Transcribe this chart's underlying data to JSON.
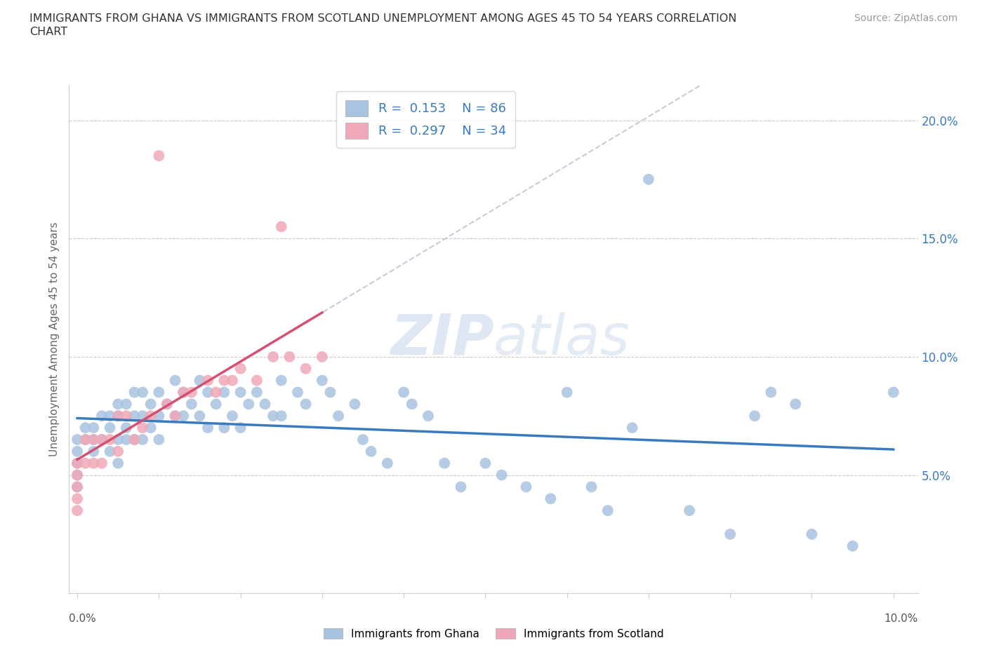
{
  "title": "IMMIGRANTS FROM GHANA VS IMMIGRANTS FROM SCOTLAND UNEMPLOYMENT AMONG AGES 45 TO 54 YEARS CORRELATION\nCHART",
  "source": "Source: ZipAtlas.com",
  "ylabel": "Unemployment Among Ages 45 to 54 years",
  "ghana_R": 0.153,
  "ghana_N": 86,
  "scotland_R": 0.297,
  "scotland_N": 34,
  "ghana_color": "#a8c4e0",
  "scotland_color": "#f0a8b8",
  "ghana_line_color": "#3a7abf",
  "scotland_line_color": "#d45070",
  "dashed_line_color": "#c8b8d0",
  "background_color": "#ffffff",
  "watermark_color": "#c8d8ec",
  "xlim": [
    0.0,
    0.1
  ],
  "ylim": [
    0.0,
    0.215
  ],
  "yticks": [
    0.05,
    0.1,
    0.15,
    0.2
  ],
  "ytick_labels": [
    "5.0%",
    "10.0%",
    "15.0%",
    "20.0%"
  ],
  "ghana_x": [
    0.0,
    0.0,
    0.0,
    0.0,
    0.0,
    0.001,
    0.001,
    0.002,
    0.002,
    0.002,
    0.003,
    0.003,
    0.004,
    0.004,
    0.004,
    0.005,
    0.005,
    0.005,
    0.005,
    0.006,
    0.006,
    0.006,
    0.007,
    0.007,
    0.007,
    0.008,
    0.008,
    0.008,
    0.009,
    0.009,
    0.01,
    0.01,
    0.01,
    0.011,
    0.012,
    0.012,
    0.013,
    0.013,
    0.014,
    0.015,
    0.015,
    0.016,
    0.016,
    0.017,
    0.018,
    0.018,
    0.019,
    0.02,
    0.02,
    0.021,
    0.022,
    0.023,
    0.024,
    0.025,
    0.025,
    0.027,
    0.028,
    0.03,
    0.031,
    0.032,
    0.034,
    0.035,
    0.036,
    0.038,
    0.04,
    0.041,
    0.043,
    0.045,
    0.047,
    0.05,
    0.052,
    0.055,
    0.058,
    0.06,
    0.063,
    0.065,
    0.068,
    0.07,
    0.075,
    0.08,
    0.083,
    0.085,
    0.088,
    0.09,
    0.095,
    0.1
  ],
  "ghana_y": [
    0.065,
    0.06,
    0.055,
    0.05,
    0.045,
    0.07,
    0.065,
    0.07,
    0.065,
    0.06,
    0.075,
    0.065,
    0.075,
    0.07,
    0.06,
    0.08,
    0.075,
    0.065,
    0.055,
    0.08,
    0.07,
    0.065,
    0.085,
    0.075,
    0.065,
    0.085,
    0.075,
    0.065,
    0.08,
    0.07,
    0.085,
    0.075,
    0.065,
    0.08,
    0.09,
    0.075,
    0.085,
    0.075,
    0.08,
    0.09,
    0.075,
    0.085,
    0.07,
    0.08,
    0.085,
    0.07,
    0.075,
    0.085,
    0.07,
    0.08,
    0.085,
    0.08,
    0.075,
    0.09,
    0.075,
    0.085,
    0.08,
    0.09,
    0.085,
    0.075,
    0.08,
    0.065,
    0.06,
    0.055,
    0.085,
    0.08,
    0.075,
    0.055,
    0.045,
    0.055,
    0.05,
    0.045,
    0.04,
    0.085,
    0.045,
    0.035,
    0.07,
    0.175,
    0.035,
    0.025,
    0.075,
    0.085,
    0.08,
    0.025,
    0.02,
    0.085
  ],
  "scotland_x": [
    0.0,
    0.0,
    0.0,
    0.0,
    0.0,
    0.001,
    0.001,
    0.002,
    0.002,
    0.003,
    0.003,
    0.004,
    0.005,
    0.005,
    0.006,
    0.007,
    0.008,
    0.009,
    0.01,
    0.011,
    0.012,
    0.013,
    0.014,
    0.015,
    0.016,
    0.017,
    0.018,
    0.019,
    0.02,
    0.022,
    0.024,
    0.026,
    0.028,
    0.03
  ],
  "scotland_y": [
    0.055,
    0.05,
    0.045,
    0.04,
    0.035,
    0.065,
    0.055,
    0.065,
    0.055,
    0.065,
    0.055,
    0.065,
    0.075,
    0.06,
    0.075,
    0.065,
    0.07,
    0.075,
    0.075,
    0.08,
    0.075,
    0.085,
    0.085,
    0.09,
    0.09,
    0.085,
    0.09,
    0.09,
    0.095,
    0.09,
    0.1,
    0.1,
    0.095,
    0.1
  ]
}
